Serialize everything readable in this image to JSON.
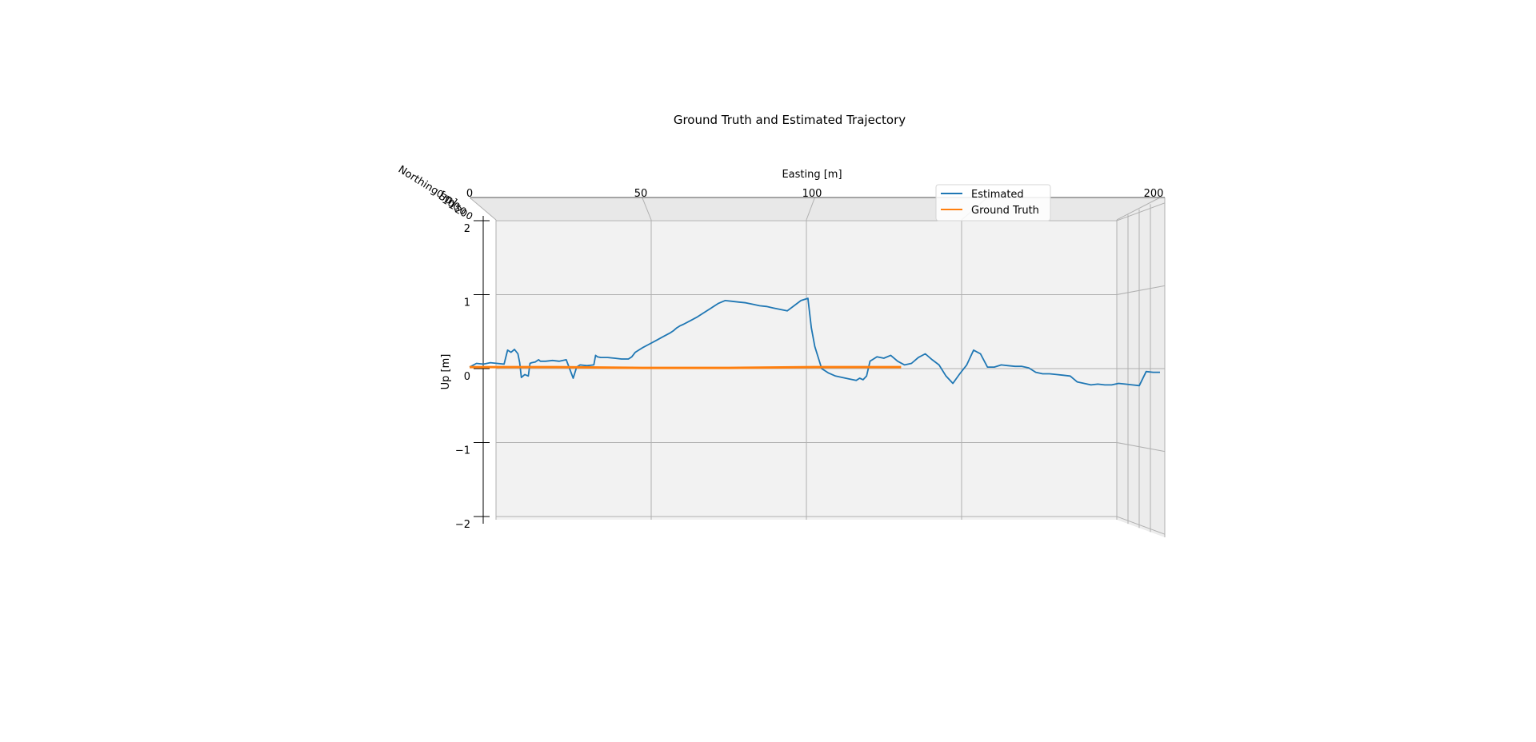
{
  "chart_data": {
    "type": "line",
    "projection": "3d",
    "title": "Ground Truth and Estimated Trajectory",
    "xlabel": "Easting [m]",
    "ylabel": "Northing [m]",
    "zlabel": "Up [m]",
    "xlim": [
      0,
      200
    ],
    "zlim": [
      -2,
      2
    ],
    "xticks": [
      "0",
      "50",
      "100",
      "150",
      "200"
    ],
    "xtick_labels_shown": [
      "0",
      "50",
      "100",
      "200"
    ],
    "yticks": [
      "0",
      "50",
      "100",
      "150",
      "200"
    ],
    "zticks": [
      "−2",
      "−1",
      "0",
      "1",
      "2"
    ],
    "grid": true,
    "legend": {
      "position": "top-right",
      "entries": [
        "Estimated",
        "Ground Truth"
      ]
    },
    "series": [
      {
        "name": "Estimated",
        "color": "#1f77b4",
        "x": [
          0,
          2,
          4,
          6,
          8,
          10,
          11,
          12,
          13,
          14,
          14.5,
          15,
          16,
          17,
          17.5,
          18,
          19,
          20,
          20.5,
          22,
          24,
          26,
          28,
          30,
          31,
          32,
          34,
          36,
          36.5,
          37,
          38,
          40,
          42,
          44,
          46,
          47,
          48,
          49,
          50,
          52,
          54,
          56,
          58,
          59,
          60,
          61,
          62,
          64,
          66,
          68,
          70,
          72,
          74,
          76,
          78,
          80,
          82,
          84,
          86,
          88,
          90,
          92,
          94,
          96,
          98,
          99,
          100,
          101,
          102,
          104,
          106,
          108,
          110,
          111,
          112,
          113,
          114,
          115,
          116,
          118,
          120,
          122,
          124,
          126,
          128,
          130,
          132,
          134,
          136,
          138,
          140,
          142,
          144,
          146,
          148,
          150,
          152,
          154,
          156,
          158,
          160,
          162,
          164,
          166,
          168,
          170,
          172,
          174,
          176,
          178,
          180,
          182,
          184,
          186,
          188,
          190,
          192,
          194,
          196,
          198,
          200
        ],
        "z": [
          0.02,
          0.07,
          0.06,
          0.08,
          0.07,
          0.06,
          0.25,
          0.22,
          0.26,
          0.2,
          0.08,
          -0.12,
          -0.08,
          -0.1,
          0.07,
          0.08,
          0.09,
          0.12,
          0.1,
          0.1,
          0.11,
          0.1,
          0.12,
          -0.13,
          0.02,
          0.05,
          0.04,
          0.05,
          0.18,
          0.16,
          0.15,
          0.15,
          0.14,
          0.13,
          0.13,
          0.16,
          0.22,
          0.25,
          0.28,
          0.33,
          0.38,
          0.43,
          0.48,
          0.51,
          0.55,
          0.58,
          0.6,
          0.65,
          0.7,
          0.76,
          0.82,
          0.88,
          0.92,
          0.91,
          0.9,
          0.89,
          0.87,
          0.85,
          0.84,
          0.82,
          0.8,
          0.78,
          0.85,
          0.92,
          0.95,
          0.55,
          0.3,
          0.15,
          0.0,
          -0.06,
          -0.1,
          -0.12,
          -0.14,
          -0.15,
          -0.16,
          -0.13,
          -0.15,
          -0.1,
          0.1,
          0.16,
          0.14,
          0.18,
          0.1,
          0.05,
          0.07,
          0.15,
          0.2,
          0.12,
          0.05,
          -0.1,
          -0.2,
          -0.07,
          0.05,
          0.25,
          0.2,
          0.02,
          0.02,
          0.05,
          0.04,
          0.03,
          0.03,
          0.01,
          -0.05,
          -0.07,
          -0.07,
          -0.08,
          -0.09,
          -0.1,
          -0.18,
          -0.2,
          -0.22,
          -0.21,
          -0.22,
          -0.22,
          -0.2,
          -0.21,
          -0.22,
          -0.23,
          -0.04,
          -0.05,
          -0.05
        ]
      },
      {
        "name": "Ground Truth",
        "color": "#ff7f0e",
        "x": [
          0,
          25,
          50,
          75,
          100,
          125
        ],
        "z": [
          0.02,
          0.02,
          0.01,
          0.01,
          0.02,
          0.02
        ]
      }
    ]
  }
}
